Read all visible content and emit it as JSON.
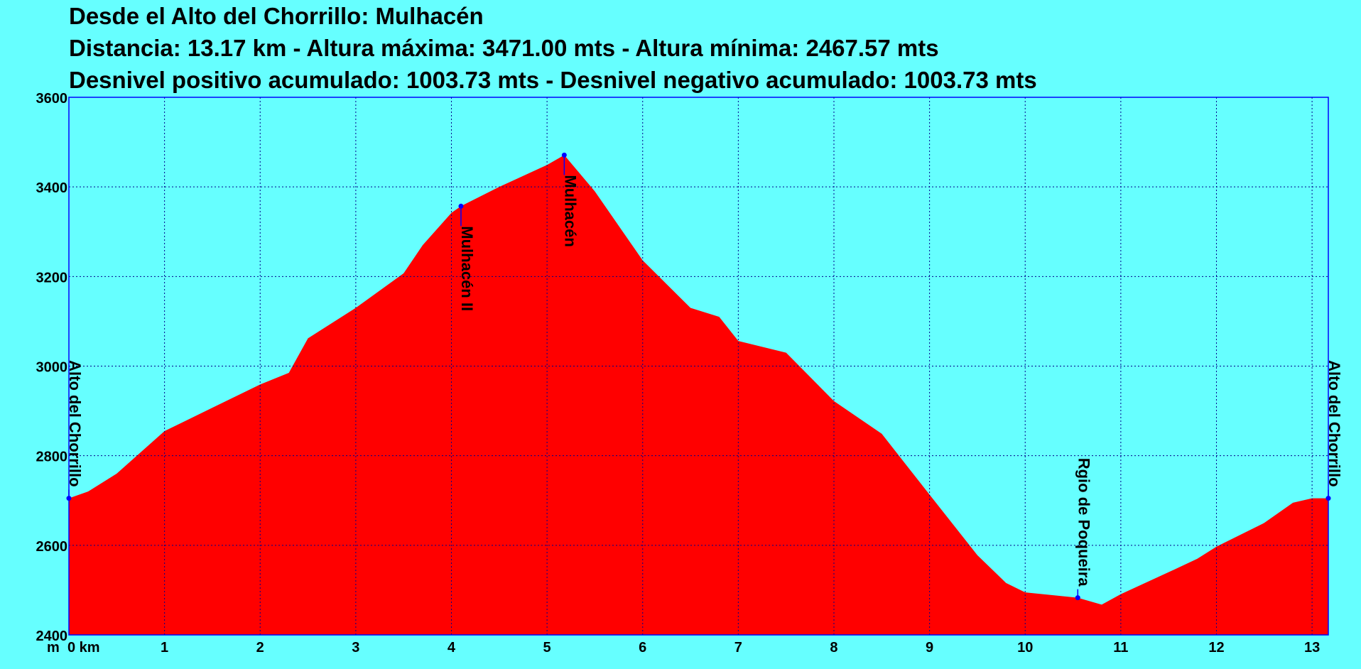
{
  "chart_data": {
    "type": "area",
    "title": "Desde el Alto del Chorrillo: Mulhacén",
    "subtitle": "Distancia: 13.17 km - Altura máxima: 3471.00 mts - Altura mínima: 2467.57 mts",
    "subtitle2": "Desnivel positivo acumulado: 1003.73 mts - Desnivel negativo acumulado: 1003.73 mts",
    "y_unit": "m",
    "x": [
      0,
      0.2,
      0.5,
      1.0,
      1.5,
      2.0,
      2.3,
      2.5,
      3.0,
      3.5,
      3.7,
      4.0,
      4.1,
      4.5,
      5.0,
      5.18,
      5.5,
      6.0,
      6.5,
      6.8,
      7.0,
      7.5,
      8.0,
      8.5,
      9.0,
      9.5,
      9.8,
      10.0,
      10.55,
      10.8,
      11.0,
      11.5,
      11.8,
      12.0,
      12.5,
      12.8,
      13.0,
      13.17
    ],
    "series": [
      {
        "color": "#ff0000",
        "values": [
          2705,
          2720,
          2760,
          2855,
          2907,
          2959,
          2985,
          3062,
          3130,
          3207,
          3270,
          3342,
          3357,
          3400,
          3449,
          3471,
          3390,
          3236,
          3130,
          3110,
          3056,
          3030,
          2922,
          2849,
          2713,
          2578,
          2516,
          2495,
          2483,
          2467.57,
          2491,
          2540,
          2570,
          2597,
          2650,
          2695,
          2705,
          2705
        ]
      }
    ],
    "waypoints": [
      {
        "name": "Alto del Chorrillo",
        "x": 0,
        "y": 2705
      },
      {
        "name": "Mulhacén II",
        "x": 4.1,
        "y": 3357
      },
      {
        "name": "Mulhacén",
        "x": 5.18,
        "y": 3471
      },
      {
        "name": "Rgio de Poqueira",
        "x": 10.55,
        "y": 2483
      },
      {
        "name": "Alto del Chorrillo",
        "x": 13.17,
        "y": 2705
      }
    ],
    "xlim": [
      0,
      13.17
    ],
    "ylim": [
      2400,
      3600
    ],
    "xticks": [
      {
        "value": 0,
        "label": "0 km"
      },
      1,
      2,
      3,
      4,
      5,
      6,
      7,
      8,
      9,
      10,
      11,
      12,
      13
    ],
    "yticks": [
      2400,
      2600,
      2800,
      3000,
      3200,
      3400,
      3600
    ],
    "grid": true
  }
}
